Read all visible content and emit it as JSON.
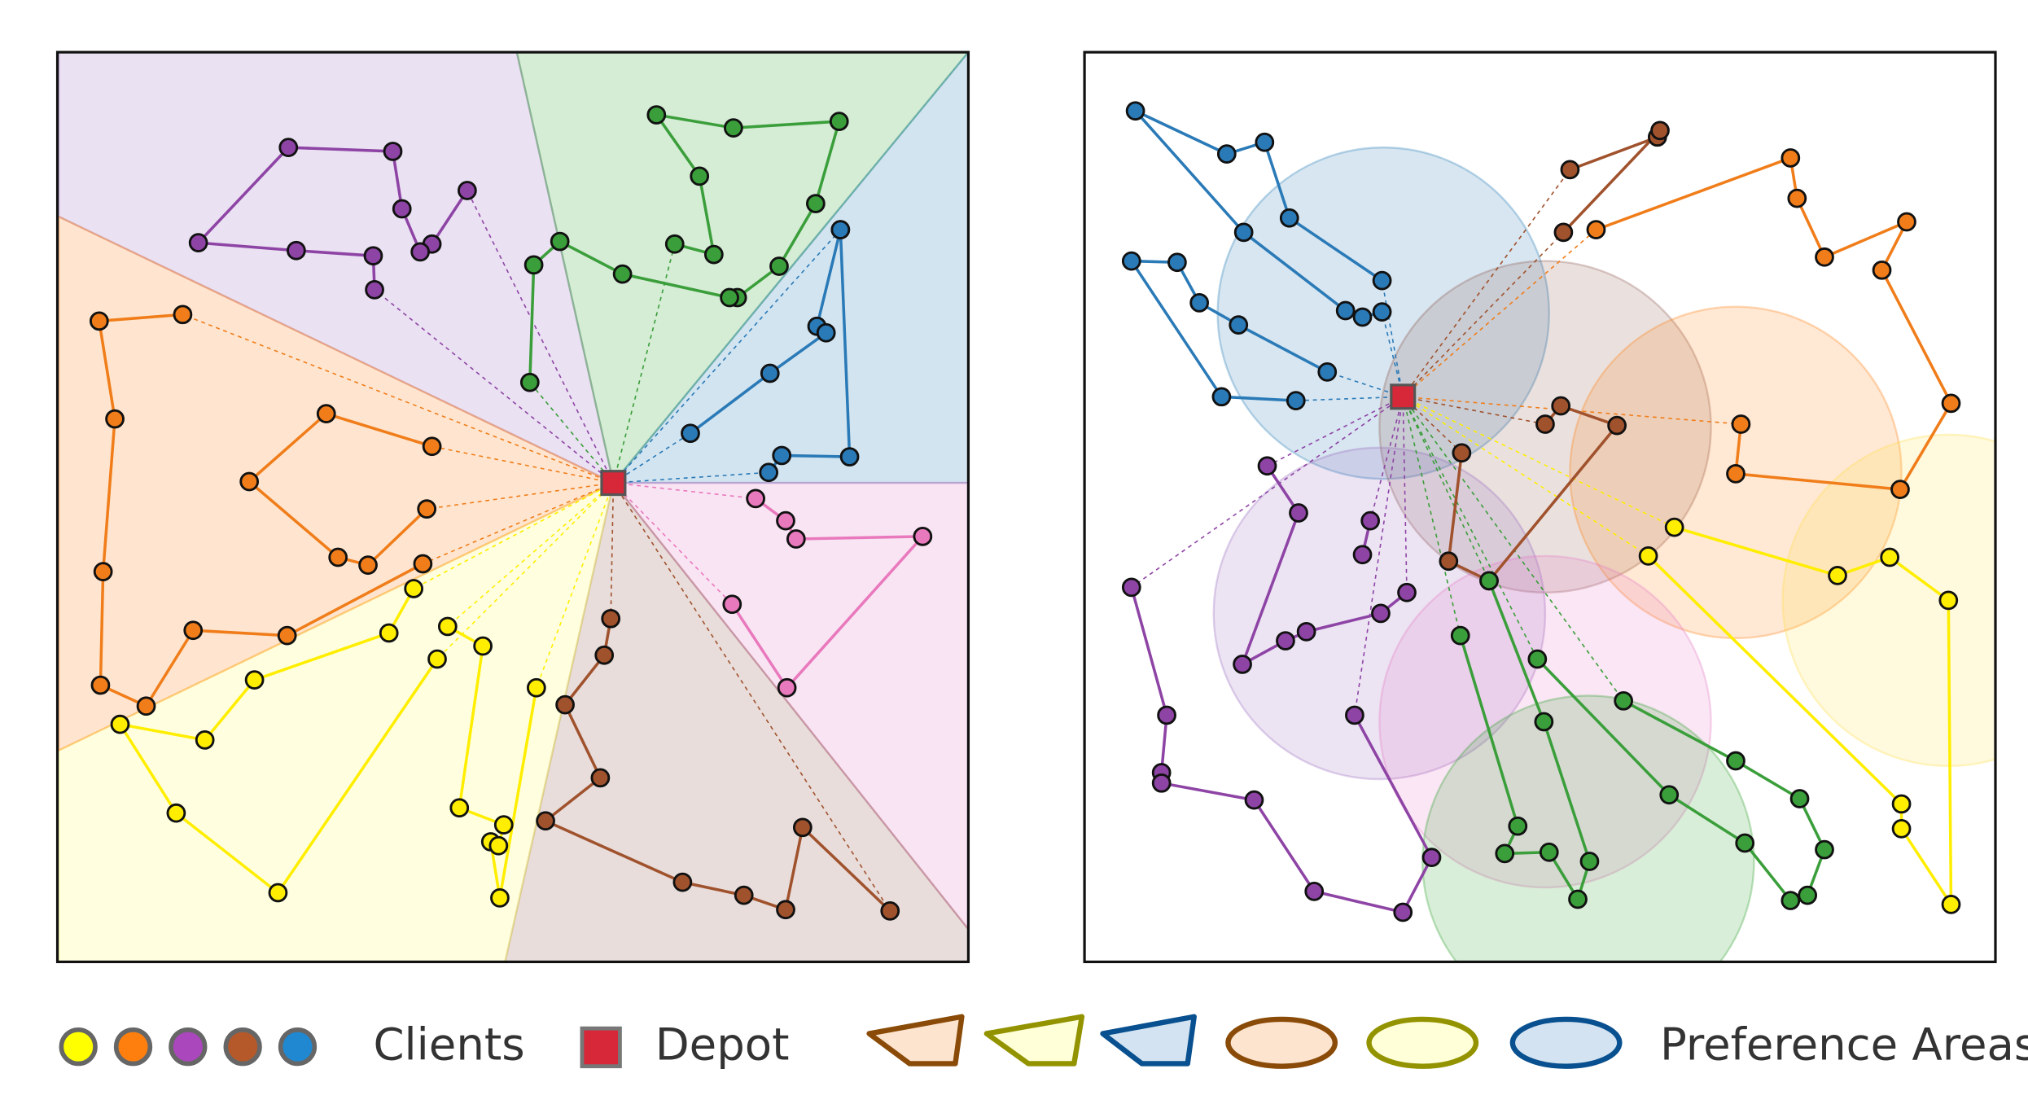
{
  "legend": {
    "clients_label": "Clients",
    "depot_label": "Depot",
    "areas_label": "Preference Areas",
    "client_colors": [
      "#ffff00",
      "#ff7f0e",
      "#ab47bc",
      "#b5592a",
      "#1f88d0"
    ],
    "depot_color": "#d62839",
    "area_swatches": [
      {
        "shape": "quad",
        "fill": "#fde4cf",
        "stroke": "#8a4b08"
      },
      {
        "shape": "quad",
        "fill": "#ffffd8",
        "stroke": "#939300"
      },
      {
        "shape": "quad",
        "fill": "#d4e3f1",
        "stroke": "#08508f"
      },
      {
        "shape": "ellipse",
        "fill": "#fde4cf",
        "stroke": "#8a4b08"
      },
      {
        "shape": "ellipse",
        "fill": "#ffffd8",
        "stroke": "#939300"
      },
      {
        "shape": "ellipse",
        "fill": "#d4e3f1",
        "stroke": "#08508f"
      }
    ]
  },
  "left_panel": {
    "depot": [
      470,
      370
    ],
    "sectors": [
      {
        "color": "#9467bd",
        "points": [
          [
            470,
            370
          ],
          [
            45,
            166
          ],
          [
            45,
            40
          ],
          [
            396,
            40
          ]
        ]
      },
      {
        "color": "#2ca02c",
        "points": [
          [
            470,
            370
          ],
          [
            396,
            40
          ],
          [
            742,
            40
          ]
        ]
      },
      {
        "color": "#1f77b4",
        "points": [
          [
            470,
            370
          ],
          [
            742,
            40
          ],
          [
            742,
            370
          ]
        ]
      },
      {
        "color": "#e377c2",
        "points": [
          [
            470,
            370
          ],
          [
            742,
            370
          ],
          [
            742,
            712
          ]
        ]
      },
      {
        "color": "#8c564b",
        "points": [
          [
            470,
            370
          ],
          [
            742,
            712
          ],
          [
            742,
            737
          ],
          [
            387,
            737
          ]
        ]
      },
      {
        "color": "#ffff66",
        "points": [
          [
            470,
            370
          ],
          [
            387,
            737
          ],
          [
            45,
            737
          ],
          [
            45,
            575
          ]
        ]
      },
      {
        "color": "#ff7f0e",
        "points": [
          [
            470,
            370
          ],
          [
            45,
            575
          ],
          [
            45,
            166
          ]
        ]
      }
    ],
    "routes": [
      {
        "color": "#8e44a5",
        "stops": [
          [
            358,
            146
          ],
          [
            331,
            187
          ],
          [
            322,
            193
          ],
          [
            308,
            160
          ],
          [
            301,
            116
          ],
          [
            221,
            113
          ],
          [
            152,
            186
          ],
          [
            227,
            192
          ],
          [
            286,
            196
          ],
          [
            287,
            222
          ]
        ]
      },
      {
        "color": "#3a9e3a",
        "stops": [
          [
            517,
            187
          ],
          [
            547,
            195
          ],
          [
            536,
            135
          ],
          [
            503,
            88
          ],
          [
            562,
            98
          ],
          [
            643,
            93
          ],
          [
            625,
            156
          ],
          [
            597,
            204
          ],
          [
            565,
            228
          ],
          [
            559,
            228
          ],
          [
            477,
            210
          ],
          [
            429,
            185
          ],
          [
            409,
            203
          ],
          [
            406,
            293
          ]
        ]
      },
      {
        "color": "#2a7ab7",
        "stops": [
          [
            644,
            176
          ],
          [
            626,
            250
          ],
          [
            633,
            255
          ],
          [
            590,
            286
          ],
          [
            529,
            332
          ]
        ]
      },
      {
        "color": "#2a7ab7",
        "stops": [
          [
            589,
            362
          ],
          [
            599,
            349
          ],
          [
            651,
            350
          ],
          [
            644,
            176
          ]
        ]
      },
      {
        "color": "#e979bd",
        "stops": [
          [
            579,
            382
          ],
          [
            602,
            399
          ],
          [
            610,
            413
          ],
          [
            707,
            411
          ],
          [
            603,
            527
          ],
          [
            561,
            463
          ]
        ]
      },
      {
        "color": "#a0522d",
        "stops": [
          [
            682,
            698
          ],
          [
            615,
            634
          ],
          [
            602,
            697
          ],
          [
            570,
            686
          ],
          [
            523,
            676
          ],
          [
            418,
            629
          ],
          [
            460,
            596
          ],
          [
            433,
            540
          ],
          [
            463,
            502
          ],
          [
            468,
            474
          ]
        ]
      },
      {
        "color": "#ffee00",
        "stops": [
          [
            411,
            527
          ],
          [
            383,
            688
          ],
          [
            376,
            645
          ],
          [
            382,
            648
          ],
          [
            386,
            632
          ],
          [
            352,
            619
          ],
          [
            370,
            495
          ],
          [
            343,
            480
          ]
        ]
      },
      {
        "color": "#ffee00",
        "stops": [
          [
            335,
            505
          ],
          [
            213,
            684
          ],
          [
            135,
            623
          ],
          [
            92,
            555
          ],
          [
            157,
            567
          ],
          [
            195,
            521
          ],
          [
            298,
            485
          ],
          [
            317,
            451
          ]
        ]
      },
      {
        "color": "#f07d1a",
        "stops": [
          [
            140,
            241
          ],
          [
            76,
            246
          ],
          [
            88,
            321
          ],
          [
            79,
            438
          ],
          [
            77,
            525
          ],
          [
            112,
            541
          ],
          [
            148,
            483
          ],
          [
            220,
            487
          ],
          [
            324,
            432
          ]
        ]
      },
      {
        "color": "#f07d1a",
        "stops": [
          [
            327,
            390
          ],
          [
            282,
            433
          ],
          [
            259,
            427
          ],
          [
            191,
            369
          ],
          [
            250,
            317
          ],
          [
            331,
            342
          ]
        ]
      }
    ],
    "depot_links": [
      {
        "to": [
          358,
          146
        ],
        "color": "#8e44a5"
      },
      {
        "to": [
          287,
          222
        ],
        "color": "#8e44a5"
      },
      {
        "to": [
          517,
          187
        ],
        "color": "#3a9e3a"
      },
      {
        "to": [
          406,
          293
        ],
        "color": "#3a9e3a"
      },
      {
        "to": [
          644,
          176
        ],
        "color": "#2a7ab7"
      },
      {
        "to": [
          529,
          332
        ],
        "color": "#2a7ab7"
      },
      {
        "to": [
          589,
          362
        ],
        "color": "#2a7ab7"
      },
      {
        "to": [
          579,
          382
        ],
        "color": "#e979bd"
      },
      {
        "to": [
          561,
          463
        ],
        "color": "#e979bd"
      },
      {
        "to": [
          682,
          698
        ],
        "color": "#a0522d"
      },
      {
        "to": [
          468,
          474
        ],
        "color": "#a0522d"
      },
      {
        "to": [
          411,
          527
        ],
        "color": "#ffee00"
      },
      {
        "to": [
          343,
          480
        ],
        "color": "#ffee00"
      },
      {
        "to": [
          335,
          505
        ],
        "color": "#ffee00"
      },
      {
        "to": [
          317,
          451
        ],
        "color": "#ffee00"
      },
      {
        "to": [
          140,
          241
        ],
        "color": "#f07d1a"
      },
      {
        "to": [
          324,
          432
        ],
        "color": "#f07d1a"
      },
      {
        "to": [
          327,
          390
        ],
        "color": "#f07d1a"
      },
      {
        "to": [
          331,
          342
        ],
        "color": "#f07d1a"
      }
    ]
  },
  "right_panel": {
    "depot": [
      1075,
      304
    ],
    "areas": [
      {
        "color": "#1f77b4",
        "center": [
          1060,
          240
        ],
        "radius": 127
      },
      {
        "color": "#8c564b",
        "center": [
          1184,
          327
        ],
        "radius": 127
      },
      {
        "color": "#ff7f0e",
        "center": [
          1330,
          362
        ],
        "radius": 127
      },
      {
        "color": "#ffdd44",
        "center": [
          1493,
          460
        ],
        "radius": 127
      },
      {
        "color": "#9467bd",
        "center": [
          1057,
          470
        ],
        "radius": 127
      },
      {
        "color": "#e377c2",
        "center": [
          1184,
          553
        ],
        "radius": 127
      },
      {
        "color": "#2ca02c",
        "center": [
          1217,
          660
        ],
        "radius": 127
      }
    ],
    "routes": [
      {
        "color": "#2a7ab7",
        "stops": [
          [
            1059,
            239
          ],
          [
            1044,
            243
          ],
          [
            1031,
            238
          ],
          [
            953,
            178
          ],
          [
            870,
            85
          ],
          [
            940,
            118
          ],
          [
            969,
            109
          ],
          [
            988,
            167
          ],
          [
            1059,
            215
          ]
        ]
      },
      {
        "color": "#2a7ab7",
        "stops": [
          [
            1017,
            285
          ],
          [
            949,
            249
          ],
          [
            919,
            232
          ],
          [
            902,
            201
          ],
          [
            867,
            200
          ],
          [
            936,
            304
          ],
          [
            993,
            307
          ]
        ]
      },
      {
        "color": "#a0522d",
        "stops": [
          [
            1203,
            130
          ],
          [
            1270,
            105
          ],
          [
            1272,
            100
          ],
          [
            1198,
            178
          ]
        ]
      },
      {
        "color": "#a0522d",
        "stops": [
          [
            1184,
            325
          ],
          [
            1196,
            311
          ],
          [
            1239,
            326
          ],
          [
            1141,
            445
          ],
          [
            1110,
            430
          ],
          [
            1120,
            347
          ]
        ]
      },
      {
        "color": "#f07d1a",
        "stops": [
          [
            1223,
            176
          ],
          [
            1372,
            121
          ],
          [
            1377,
            152
          ],
          [
            1398,
            197
          ],
          [
            1461,
            170
          ],
          [
            1442,
            207
          ],
          [
            1495,
            309
          ],
          [
            1456,
            375
          ],
          [
            1330,
            363
          ],
          [
            1334,
            325
          ]
        ]
      },
      {
        "color": "#ffee00",
        "stops": [
          [
            1283,
            404
          ],
          [
            1408,
            441
          ],
          [
            1448,
            427
          ],
          [
            1493,
            460
          ],
          [
            1495,
            693
          ],
          [
            1457,
            635
          ],
          [
            1457,
            616
          ],
          [
            1263,
            426
          ]
        ]
      },
      {
        "color": "#8e44a5",
        "stops": [
          [
            971,
            357
          ],
          [
            995,
            393
          ],
          [
            952,
            509
          ],
          [
            985,
            491
          ],
          [
            1001,
            484
          ],
          [
            1058,
            470
          ],
          [
            1078,
            454
          ]
        ]
      },
      {
        "color": "#8e44a5",
        "stops": [
          [
            1044,
            425
          ],
          [
            1050,
            399
          ]
        ]
      },
      {
        "color": "#8e44a5",
        "stops": [
          [
            867,
            450
          ],
          [
            894,
            548
          ],
          [
            890,
            592
          ],
          [
            890,
            600
          ],
          [
            961,
            613
          ],
          [
            1007,
            683
          ],
          [
            1075,
            699
          ],
          [
            1097,
            657
          ],
          [
            1038,
            548
          ]
        ]
      },
      {
        "color": "#3a9e3a",
        "stops": [
          [
            1119,
            487
          ],
          [
            1163,
            633
          ],
          [
            1153,
            654
          ],
          [
            1187,
            653
          ],
          [
            1209,
            689
          ],
          [
            1218,
            660
          ],
          [
            1183,
            553
          ],
          [
            1141,
            445
          ]
        ]
      },
      {
        "color": "#3a9e3a",
        "stops": [
          [
            1178,
            505
          ],
          [
            1279,
            609
          ],
          [
            1337,
            646
          ],
          [
            1372,
            690
          ],
          [
            1385,
            686
          ],
          [
            1398,
            651
          ],
          [
            1379,
            612
          ],
          [
            1330,
            583
          ],
          [
            1244,
            537
          ]
        ]
      }
    ],
    "depot_links": [
      {
        "to": [
          1059,
          215
        ],
        "color": "#2a7ab7"
      },
      {
        "to": [
          1059,
          239
        ],
        "color": "#2a7ab7"
      },
      {
        "to": [
          1017,
          285
        ],
        "color": "#2a7ab7"
      },
      {
        "to": [
          993,
          307
        ],
        "color": "#2a7ab7"
      },
      {
        "to": [
          1203,
          130
        ],
        "color": "#a0522d"
      },
      {
        "to": [
          1198,
          178
        ],
        "color": "#a0522d"
      },
      {
        "to": [
          1184,
          325
        ],
        "color": "#a0522d"
      },
      {
        "to": [
          1120,
          347
        ],
        "color": "#a0522d"
      },
      {
        "to": [
          1223,
          176
        ],
        "color": "#f07d1a"
      },
      {
        "to": [
          1334,
          325
        ],
        "color": "#f07d1a"
      },
      {
        "to": [
          1283,
          404
        ],
        "color": "#ffee00"
      },
      {
        "to": [
          1263,
          426
        ],
        "color": "#ffee00"
      },
      {
        "to": [
          971,
          357
        ],
        "color": "#8e44a5"
      },
      {
        "to": [
          1078,
          454
        ],
        "color": "#8e44a5"
      },
      {
        "to": [
          1050,
          399
        ],
        "color": "#8e44a5"
      },
      {
        "to": [
          867,
          450
        ],
        "color": "#8e44a5"
      },
      {
        "to": [
          1038,
          548
        ],
        "color": "#8e44a5"
      },
      {
        "to": [
          1119,
          487
        ],
        "color": "#3a9e3a"
      },
      {
        "to": [
          1141,
          445
        ],
        "color": "#3a9e3a"
      },
      {
        "to": [
          1178,
          505
        ],
        "color": "#3a9e3a"
      },
      {
        "to": [
          1244,
          537
        ],
        "color": "#3a9e3a"
      }
    ]
  }
}
